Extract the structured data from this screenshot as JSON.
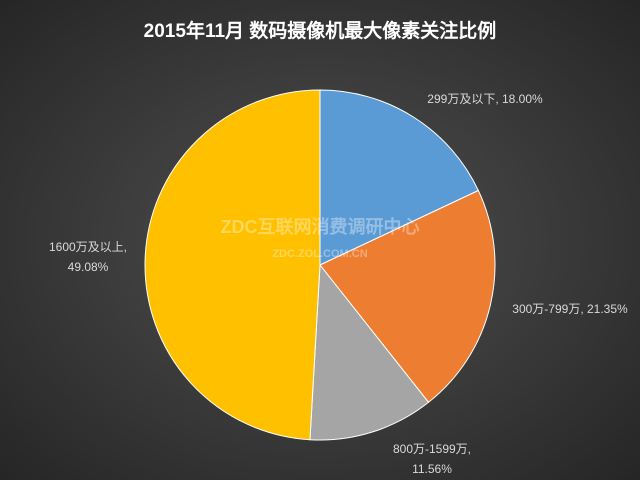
{
  "chart_data": {
    "type": "pie",
    "title": "2015年11月  数码摄像机最大像素关注比例",
    "watermark": [
      "ZDC互联网消费调研中心",
      "ZDC.ZOL.COM.CN"
    ],
    "categories": [
      "299万及以下",
      "300万-799万",
      "800万-1599万",
      "1600万及以上"
    ],
    "values": [
      18.0,
      21.35,
      11.56,
      49.08
    ],
    "value_labels": [
      [
        "299万及以下, 18.00%"
      ],
      [
        "300万-799万, 21.35%"
      ],
      [
        "800万-1599万,",
        "11.56%"
      ],
      [
        "1600万及以上,",
        "49.08%"
      ]
    ],
    "colors": [
      "#5b9bd5",
      "#ed7d31",
      "#a5a5a5",
      "#ffc000"
    ]
  }
}
